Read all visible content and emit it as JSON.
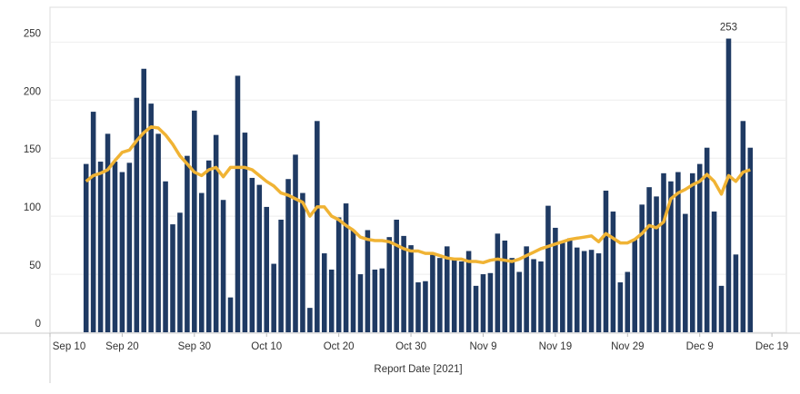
{
  "chart_data": {
    "type": "bar",
    "x_label": "Report Date [2021]",
    "x": [
      "Sep 15",
      "Sep 16",
      "Sep 17",
      "Sep 18",
      "Sep 19",
      "Sep 20",
      "Sep 21",
      "Sep 22",
      "Sep 23",
      "Sep 24",
      "Sep 25",
      "Sep 26",
      "Sep 27",
      "Sep 28",
      "Sep 29",
      "Sep 30",
      "Oct 1",
      "Oct 2",
      "Oct 3",
      "Oct 4",
      "Oct 5",
      "Oct 6",
      "Oct 7",
      "Oct 8",
      "Oct 9",
      "Oct 10",
      "Oct 11",
      "Oct 12",
      "Oct 13",
      "Oct 14",
      "Oct 15",
      "Oct 16",
      "Oct 17",
      "Oct 18",
      "Oct 19",
      "Oct 20",
      "Oct 21",
      "Oct 22",
      "Oct 23",
      "Oct 24",
      "Oct 25",
      "Oct 26",
      "Oct 27",
      "Oct 28",
      "Oct 29",
      "Oct 30",
      "Oct 31",
      "Nov 1",
      "Nov 2",
      "Nov 3",
      "Nov 4",
      "Nov 5",
      "Nov 6",
      "Nov 7",
      "Nov 8",
      "Nov 9",
      "Nov 10",
      "Nov 11",
      "Nov 12",
      "Nov 13",
      "Nov 14",
      "Nov 15",
      "Nov 16",
      "Nov 17",
      "Nov 18",
      "Nov 19",
      "Nov 20",
      "Nov 21",
      "Nov 22",
      "Nov 23",
      "Nov 24",
      "Nov 25",
      "Nov 26",
      "Nov 27",
      "Nov 28",
      "Nov 29",
      "Nov 30",
      "Dec 1",
      "Dec 2",
      "Dec 3",
      "Dec 4",
      "Dec 5",
      "Dec 6",
      "Dec 7",
      "Dec 8",
      "Dec 9",
      "Dec 10",
      "Dec 11",
      "Dec 12",
      "Dec 13",
      "Dec 14",
      "Dec 15",
      "Dec 16"
    ],
    "series": [
      {
        "type": "bar",
        "color": "#1f3a63",
        "label_max": true,
        "values": [
          145,
          190,
          147,
          171,
          147,
          138,
          146,
          202,
          227,
          197,
          171,
          130,
          93,
          103,
          152,
          191,
          120,
          148,
          170,
          114,
          30,
          221,
          172,
          133,
          127,
          108,
          59,
          97,
          132,
          153,
          120,
          21,
          182,
          68,
          54,
          99,
          111,
          88,
          50,
          88,
          54,
          55,
          82,
          97,
          83,
          75,
          43,
          44,
          68,
          64,
          74,
          64,
          61,
          70,
          40,
          50,
          51,
          85,
          79,
          64,
          52,
          74,
          63,
          61,
          109,
          90,
          77,
          81,
          73,
          70,
          71,
          68,
          122,
          104,
          43,
          52,
          80,
          110,
          125,
          117,
          137,
          130,
          138,
          102,
          137,
          145,
          159,
          104,
          40,
          253,
          67,
          182,
          159
        ]
      },
      {
        "type": "line",
        "color": "#f0b334",
        "values": [
          130,
          135,
          137,
          140,
          148,
          155,
          157,
          165,
          172,
          177,
          176,
          170,
          162,
          152,
          145,
          138,
          135,
          140,
          142,
          134,
          142,
          142,
          142,
          140,
          135,
          130,
          126,
          120,
          118,
          115,
          112,
          100,
          108,
          108,
          100,
          97,
          92,
          88,
          82,
          80,
          79,
          79,
          78,
          75,
          72,
          70,
          70,
          68,
          68,
          66,
          64,
          63,
          63,
          61,
          61,
          60,
          62,
          63,
          62,
          61,
          63,
          66,
          69,
          72,
          74,
          76,
          78,
          80,
          81,
          82,
          83,
          78,
          85,
          81,
          77,
          77,
          80,
          85,
          92,
          90,
          95,
          115,
          120,
          123,
          127,
          130,
          136,
          130,
          119,
          135,
          130,
          138,
          140
        ]
      }
    ],
    "xlim": [
      "Sep 10",
      "Dec 21"
    ],
    "xticks": [
      "Sep 10",
      "Sep 20",
      "Sep 30",
      "Oct 10",
      "Oct 20",
      "Oct 30",
      "Nov 9",
      "Nov 19",
      "Nov 29",
      "Dec 9",
      "Dec 19"
    ],
    "ylim": [
      0,
      280
    ],
    "yticks": [
      0,
      50,
      100,
      150,
      200,
      250
    ],
    "grid": true
  }
}
